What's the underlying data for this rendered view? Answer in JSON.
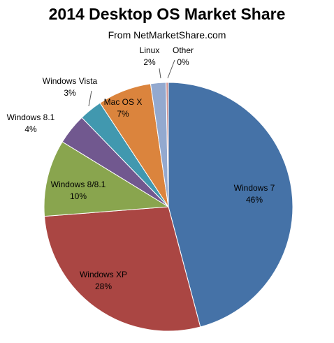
{
  "chart_data": {
    "type": "pie",
    "title": "2014 Desktop OS Market Share",
    "subtitle": "From NetMarketShare.com",
    "slices": [
      {
        "name": "Windows 7",
        "value": 46,
        "label": "46%",
        "color": "#4572A7"
      },
      {
        "name": "Windows XP",
        "value": 28,
        "label": "28%",
        "color": "#AA4643"
      },
      {
        "name": "Windows 8/8.1",
        "value": 10,
        "label": "10%",
        "color": "#89A54E"
      },
      {
        "name": "Windows 8.1",
        "value": 4,
        "label": "4%",
        "color": "#71588F"
      },
      {
        "name": "Windows Vista",
        "value": 3,
        "label": "3%",
        "color": "#4198AF"
      },
      {
        "name": "Mac OS X",
        "value": 7,
        "label": "7%",
        "color": "#DB843D"
      },
      {
        "name": "Linux",
        "value": 2,
        "label": "2%",
        "color": "#93A9CF"
      },
      {
        "name": "Other",
        "value": 0.3,
        "label": "0%",
        "color": "#D19392"
      }
    ]
  }
}
